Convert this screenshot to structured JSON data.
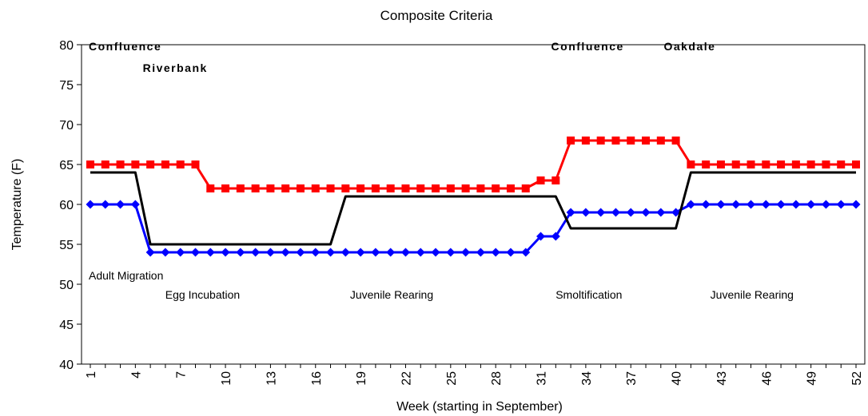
{
  "chart_data": {
    "type": "line",
    "title": "Composite Criteria",
    "xlabel": "Week (starting in September)",
    "ylabel": "Temperature (F)",
    "xlim": [
      1,
      52
    ],
    "ylim": [
      40,
      80
    ],
    "y_ticks": [
      40,
      45,
      50,
      55,
      60,
      65,
      70,
      75,
      80
    ],
    "x_ticks": [
      1,
      4,
      7,
      10,
      13,
      16,
      19,
      22,
      25,
      28,
      31,
      34,
      37,
      40,
      43,
      46,
      49,
      52
    ],
    "grid": false,
    "legend": "none",
    "series": [
      {
        "color": "#ff0000",
        "marker": "square",
        "values": [
          65,
          65,
          65,
          65,
          65,
          65,
          65,
          65,
          62,
          62,
          62,
          62,
          62,
          62,
          62,
          62,
          62,
          62,
          62,
          62,
          62,
          62,
          62,
          62,
          62,
          62,
          62,
          62,
          62,
          62,
          63,
          63,
          68,
          68,
          68,
          68,
          68,
          68,
          68,
          68,
          65,
          65,
          65,
          65,
          65,
          65,
          65,
          65,
          65,
          65,
          65,
          65
        ]
      },
      {
        "color": "#0000ff",
        "marker": "diamond",
        "values": [
          60,
          60,
          60,
          60,
          54,
          54,
          54,
          54,
          54,
          54,
          54,
          54,
          54,
          54,
          54,
          54,
          54,
          54,
          54,
          54,
          54,
          54,
          54,
          54,
          54,
          54,
          54,
          54,
          54,
          54,
          56,
          56,
          59,
          59,
          59,
          59,
          59,
          59,
          59,
          59,
          60,
          60,
          60,
          60,
          60,
          60,
          60,
          60,
          60,
          60,
          60,
          60
        ]
      },
      {
        "color": "#000000",
        "marker": "none",
        "values": [
          64,
          64,
          64,
          64,
          55,
          55,
          55,
          55,
          55,
          55,
          55,
          55,
          55,
          55,
          55,
          55,
          55,
          61,
          61,
          61,
          61,
          61,
          61,
          61,
          61,
          61,
          61,
          61,
          61,
          61,
          61,
          61,
          57,
          57,
          57,
          57,
          57,
          57,
          57,
          57,
          64,
          64,
          64,
          64,
          64,
          64,
          64,
          64,
          64,
          64,
          64,
          64
        ]
      }
    ],
    "annotations": [
      {
        "text": "Confluence",
        "x": 1,
        "y": 79.3,
        "style": "bold"
      },
      {
        "text": "Riverbank",
        "x": 4.6,
        "y": 76.6,
        "style": "bold"
      },
      {
        "text": "Confluence",
        "x": 31.8,
        "y": 79.3,
        "style": "bold"
      },
      {
        "text": "Oakdale",
        "x": 39.3,
        "y": 79.3,
        "style": "bold"
      },
      {
        "text": "Adult Migration",
        "x": 1,
        "y": 50.6,
        "style": "normal"
      },
      {
        "text": "Egg Incubation",
        "x": 6.1,
        "y": 48.2,
        "style": "normal"
      },
      {
        "text": "Juvenile Rearing",
        "x": 18.4,
        "y": 48.2,
        "style": "normal"
      },
      {
        "text": "Smoltification",
        "x": 32.1,
        "y": 48.2,
        "style": "normal"
      },
      {
        "text": "Juvenile Rearing",
        "x": 42.4,
        "y": 48.2,
        "style": "normal"
      }
    ]
  }
}
